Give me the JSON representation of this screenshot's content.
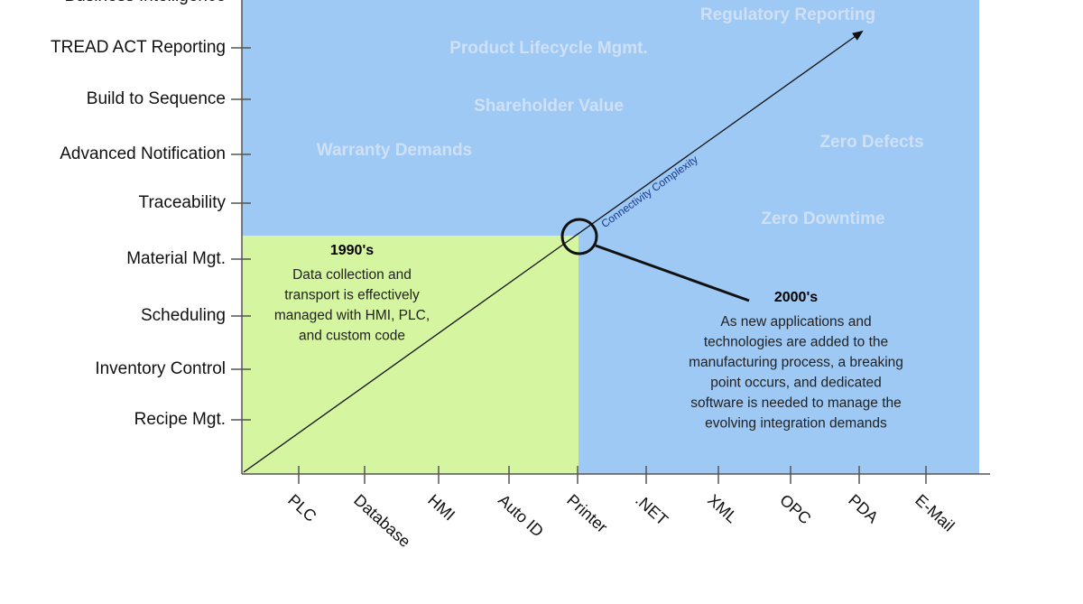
{
  "y_axis_labels": [
    "Business Intelligence",
    "TREAD ACT Reporting",
    "Build to Sequence",
    "Advanced Notification",
    "Traceability",
    "Material Mgt.",
    "Scheduling",
    "Inventory Control",
    "Recipe Mgt."
  ],
  "x_axis_labels": [
    "PLC",
    "Database",
    "HMI",
    "Auto ID",
    "Printer",
    ".NET",
    "XML",
    "OPC",
    "PDA",
    "E-Mail"
  ],
  "background_labels": [
    "Regulatory Reporting",
    "Product Lifecycle Mgmt.",
    "Shareholder Value",
    "Warranty Demands",
    "Zero Defects",
    "Zero Downtime"
  ],
  "arrow_label": "Connectivity Complexity",
  "era_1990": {
    "title": "1990's",
    "lines": [
      "Data collection and",
      "transport is effectively",
      "managed with HMI, PLC,",
      "and custom code"
    ]
  },
  "era_2000": {
    "title": "2000's",
    "lines": [
      "As new applications and",
      "technologies are added to the",
      "manufacturing process, a breaking",
      "point occurs, and dedicated",
      "software is needed to manage the",
      "evolving integration demands"
    ]
  }
}
